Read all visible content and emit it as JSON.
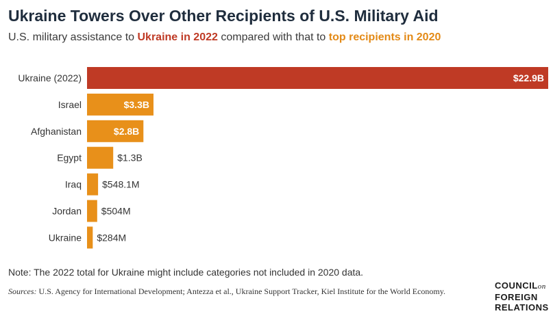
{
  "title": "Ukraine Towers Over Other Recipients of U.S. Military Aid",
  "subtitle": {
    "prefix": "U.S. military assistance to ",
    "highlight_ukraine": "Ukraine in 2022",
    "middle": " compared with that to ",
    "highlight_top": "top recipients in 2020"
  },
  "colors": {
    "ukraine_2022": "#bf3a25",
    "top_2020": "#e8901a",
    "title": "#1f2d3d"
  },
  "chart_data": {
    "type": "bar",
    "orientation": "horizontal",
    "unit": "billions USD",
    "categories": [
      "Ukraine (2022)",
      "Israel",
      "Afghanistan",
      "Egypt",
      "Iraq",
      "Jordan",
      "Ukraine"
    ],
    "values": [
      22.9,
      3.3,
      2.8,
      1.3,
      0.5481,
      0.504,
      0.284
    ],
    "labels": [
      "$22.9B",
      "$3.3B",
      "$2.8B",
      "$1.3B",
      "$548.1M",
      "$504M",
      "$284M"
    ],
    "series_groups": [
      "ukraine_2022",
      "top_2020",
      "top_2020",
      "top_2020",
      "top_2020",
      "top_2020",
      "top_2020"
    ],
    "xlim": [
      0,
      22.9
    ],
    "grid": false,
    "legend": "none"
  },
  "note": "Note: The 2022 total for Ukraine might include categories not included in 2020 data.",
  "sources": {
    "label": "Sources:",
    "text": " U.S. Agency for International Development; Antezza et al., Ukraine Support Tracker, Kiel Institute for the World Economy."
  },
  "logo": {
    "line1": "COUNCIL",
    "line1_suffix": "on",
    "line2": "FOREIGN",
    "line3": "RELATIONS"
  }
}
